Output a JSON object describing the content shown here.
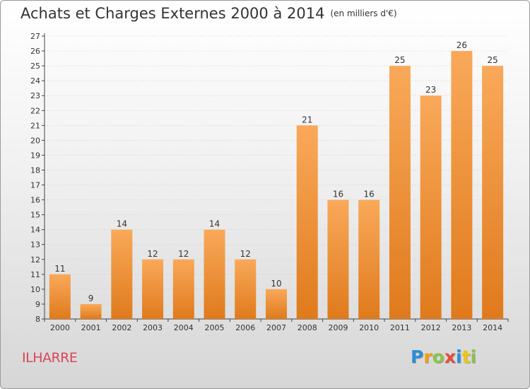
{
  "title": "Achats et Charges Externes 2000 à 2014",
  "unit_label": "(en milliers d'€)",
  "commune": "ILHARRE",
  "logo": {
    "letters": [
      "P",
      "r",
      "o",
      "x",
      "i",
      "t",
      "i"
    ],
    "colors": [
      "#2a8fd6",
      "#f39c12",
      "#8bc34a",
      "#e74c3c",
      "#2a8fd6",
      "#f1c40f",
      "#8bc34a"
    ]
  },
  "colors": {
    "bar_light": "#f9a95a",
    "bar_dark": "#e07a1c",
    "axis": "#444444",
    "grid": "#cccccc"
  },
  "chart_data": {
    "type": "bar",
    "title": "Achats et Charges Externes 2000 à 2014",
    "categories": [
      "2000",
      "2001",
      "2002",
      "2003",
      "2004",
      "2005",
      "2006",
      "2007",
      "2008",
      "2009",
      "2010",
      "2011",
      "2012",
      "2013",
      "2014"
    ],
    "values": [
      11,
      9,
      14,
      12,
      12,
      14,
      12,
      10,
      21,
      16,
      16,
      25,
      23,
      26,
      25
    ],
    "ylim": [
      8,
      27
    ],
    "yticks": [
      8,
      9,
      10,
      11,
      12,
      13,
      14,
      15,
      16,
      17,
      18,
      19,
      20,
      21,
      22,
      23,
      24,
      25,
      26,
      27
    ],
    "grid": true,
    "data_labels": true
  }
}
